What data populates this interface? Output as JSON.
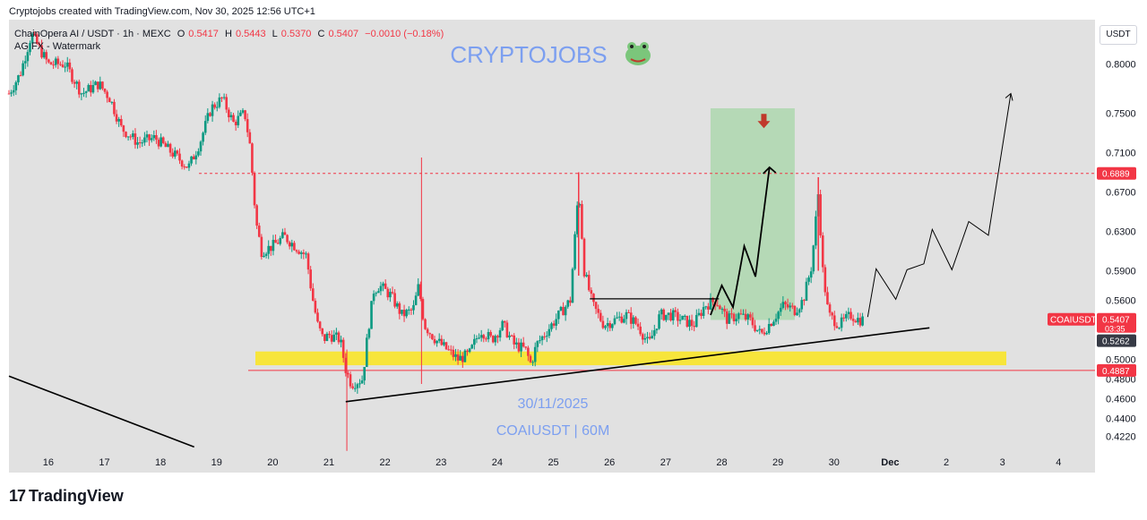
{
  "page": {
    "credit": "Cryptojobs created with TradingView.com, Nov 30, 2025 12:56 UTC+1",
    "brand_logo_text": "TradingView"
  },
  "header": {
    "symbol_line": "ChainOpera AI / USDT · 1h · MEXC",
    "o_label": "O",
    "o_value": "0.5417",
    "h_label": "H",
    "h_value": "0.5443",
    "l_label": "L",
    "l_value": "0.5370",
    "c_label": "C",
    "c_value": "0.5407",
    "change": "−0.0010 (−0.18%)",
    "indicator": "AG FX - Watermark",
    "currency_button": "USDT"
  },
  "watermark": {
    "title": "CRYPTOJOBS",
    "date": "30/11/2025",
    "symbol": "COAIUSDT | 60M"
  },
  "price_tags": {
    "resistance": "0.6889",
    "ticker": "COAIUSDT",
    "last": "0.5407",
    "countdown": "03:35",
    "trendline": "0.5262",
    "support": "0.4887"
  },
  "colors": {
    "up": "#089981",
    "down": "#f23645",
    "support_zone": "#f7e53b",
    "target_zone": "#a5d6a7",
    "watermark": "#7c9ff0",
    "resistance_line": "#f23645"
  },
  "chart_data": {
    "type": "candlestick",
    "timeframe": "1h",
    "ylim": [
      0.405,
      0.845
    ],
    "y_ticks": [
      0.8,
      0.75,
      0.71,
      0.67,
      0.63,
      0.59,
      0.56,
      0.5,
      0.48,
      0.46,
      0.44,
      0.422
    ],
    "x_ticks": [
      "16",
      "17",
      "18",
      "19",
      "20",
      "21",
      "22",
      "23",
      "24",
      "25",
      "26",
      "27",
      "28",
      "29",
      "30",
      "Dec",
      "2",
      "3",
      "4"
    ],
    "x_range_days": [
      15.3,
      34.65
    ],
    "price_path": [
      [
        15.3,
        0.77
      ],
      [
        15.5,
        0.79
      ],
      [
        15.7,
        0.83
      ],
      [
        16.0,
        0.8
      ],
      [
        16.3,
        0.8
      ],
      [
        16.6,
        0.77
      ],
      [
        16.9,
        0.78
      ],
      [
        17.1,
        0.765
      ],
      [
        17.3,
        0.735
      ],
      [
        17.6,
        0.72
      ],
      [
        17.9,
        0.725
      ],
      [
        18.2,
        0.71
      ],
      [
        18.5,
        0.695
      ],
      [
        18.7,
        0.72
      ],
      [
        18.9,
        0.755
      ],
      [
        19.1,
        0.765
      ],
      [
        19.3,
        0.74
      ],
      [
        19.5,
        0.75
      ],
      [
        19.6,
        0.715
      ],
      [
        19.7,
        0.64
      ],
      [
        19.8,
        0.61
      ],
      [
        20.0,
        0.615
      ],
      [
        20.2,
        0.625
      ],
      [
        20.4,
        0.615
      ],
      [
        20.6,
        0.605
      ],
      [
        20.7,
        0.565
      ],
      [
        20.8,
        0.535
      ],
      [
        20.9,
        0.52
      ],
      [
        21.0,
        0.525
      ],
      [
        21.2,
        0.52
      ],
      [
        21.3,
        0.49
      ],
      [
        21.4,
        0.475
      ],
      [
        21.6,
        0.48
      ],
      [
        21.7,
        0.53
      ],
      [
        21.8,
        0.57
      ],
      [
        21.9,
        0.575
      ],
      [
        22.1,
        0.565
      ],
      [
        22.3,
        0.545
      ],
      [
        22.5,
        0.55
      ],
      [
        22.6,
        0.575
      ],
      [
        22.7,
        0.535
      ],
      [
        22.9,
        0.52
      ],
      [
        23.1,
        0.51
      ],
      [
        23.3,
        0.5
      ],
      [
        23.5,
        0.505
      ],
      [
        23.7,
        0.53
      ],
      [
        23.9,
        0.52
      ],
      [
        24.1,
        0.535
      ],
      [
        24.3,
        0.515
      ],
      [
        24.5,
        0.51
      ],
      [
        24.6,
        0.495
      ],
      [
        24.7,
        0.515
      ],
      [
        24.9,
        0.53
      ],
      [
        25.1,
        0.545
      ],
      [
        25.3,
        0.56
      ],
      [
        25.45,
        0.675
      ],
      [
        25.55,
        0.59
      ],
      [
        25.7,
        0.555
      ],
      [
        25.9,
        0.535
      ],
      [
        26.1,
        0.54
      ],
      [
        26.3,
        0.545
      ],
      [
        26.5,
        0.535
      ],
      [
        26.7,
        0.515
      ],
      [
        26.9,
        0.545
      ],
      [
        27.1,
        0.545
      ],
      [
        27.3,
        0.54
      ],
      [
        27.5,
        0.535
      ],
      [
        27.7,
        0.555
      ],
      [
        27.9,
        0.56
      ],
      [
        28.1,
        0.54
      ],
      [
        28.3,
        0.545
      ],
      [
        28.5,
        0.54
      ],
      [
        28.7,
        0.525
      ],
      [
        28.9,
        0.54
      ],
      [
        29.1,
        0.555
      ],
      [
        29.3,
        0.55
      ],
      [
        29.45,
        0.56
      ],
      [
        29.6,
        0.595
      ],
      [
        29.72,
        0.67
      ],
      [
        29.8,
        0.59
      ],
      [
        29.9,
        0.545
      ],
      [
        30.1,
        0.535
      ],
      [
        30.3,
        0.545
      ],
      [
        30.45,
        0.54
      ],
      [
        30.55,
        0.5407
      ]
    ],
    "levels": {
      "resistance": 0.6889,
      "support": 0.4887,
      "support_zone": [
        0.494,
        0.508
      ],
      "breakout_line": 0.5615
    },
    "target_zone": {
      "x": [
        27.8,
        29.3
      ],
      "y": [
        0.54,
        0.755
      ]
    },
    "ascending_trendline": [
      [
        21.3,
        0.457
      ],
      [
        31.7,
        0.532
      ]
    ],
    "descending_trendline": [
      [
        15.3,
        0.483
      ],
      [
        18.6,
        0.411
      ]
    ],
    "projection_path": [
      [
        27.8,
        0.545
      ],
      [
        28.0,
        0.575
      ],
      [
        28.2,
        0.553
      ],
      [
        28.4,
        0.615
      ],
      [
        28.6,
        0.584
      ],
      [
        28.85,
        0.695
      ]
    ],
    "forecast_path": [
      [
        30.6,
        0.543
      ],
      [
        30.75,
        0.592
      ],
      [
        31.1,
        0.561
      ],
      [
        31.3,
        0.591
      ],
      [
        31.6,
        0.597
      ],
      [
        31.75,
        0.632
      ],
      [
        32.1,
        0.591
      ],
      [
        32.4,
        0.64
      ],
      [
        32.75,
        0.626
      ],
      [
        33.15,
        0.77
      ]
    ]
  }
}
